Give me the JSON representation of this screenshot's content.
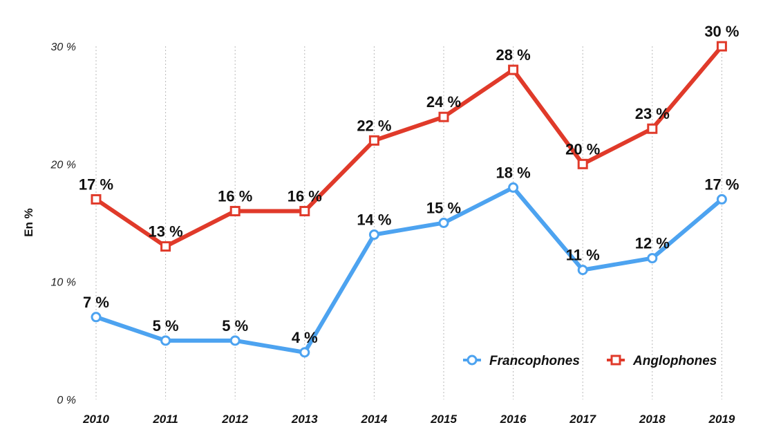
{
  "chart_data": {
    "type": "line",
    "ylabel": "En %",
    "ylim": [
      0,
      30
    ],
    "yticks": [
      0,
      10,
      20,
      30
    ],
    "ytick_labels": [
      "0 %",
      "10 %",
      "20 %",
      "30 %"
    ],
    "x": [
      "2010",
      "2011",
      "2012",
      "2013",
      "2014",
      "2015",
      "2016",
      "2017",
      "2018",
      "2019"
    ],
    "grid": "vertical dotted",
    "legend_position": "bottom-right",
    "series": [
      {
        "name": "Francophones",
        "color": "#4DA3F0",
        "marker": "circle",
        "values": [
          7,
          5,
          5,
          4,
          14,
          15,
          18,
          11,
          12,
          17
        ],
        "labels": [
          "7 %",
          "5 %",
          "5 %",
          "4 %",
          "14 %",
          "15 %",
          "18 %",
          "11 %",
          "12 %",
          "17 %"
        ]
      },
      {
        "name": "Anglophones",
        "color": "#E03A2A",
        "marker": "square",
        "values": [
          17,
          13,
          16,
          16,
          22,
          24,
          28,
          20,
          23,
          30
        ],
        "labels": [
          "17 %",
          "13 %",
          "16 %",
          "16 %",
          "22 %",
          "24 %",
          "28 %",
          "20 %",
          "23 %",
          "30 %"
        ]
      }
    ]
  }
}
